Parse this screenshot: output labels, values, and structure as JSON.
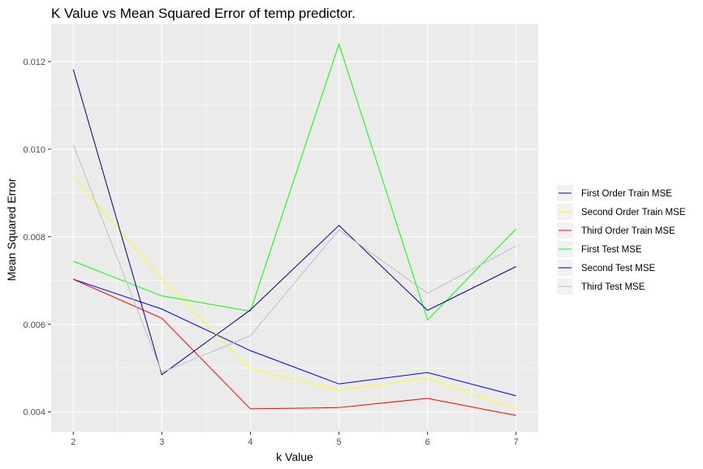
{
  "chart_data": {
    "type": "line",
    "title": "K Value vs Mean Squared Error of temp predictor.",
    "xlabel": "k Value",
    "ylabel": "Mean Squared Error",
    "x": [
      2,
      3,
      4,
      5,
      6,
      7
    ],
    "xlim": [
      1.75,
      7.25
    ],
    "ylim": [
      0.00355,
      0.01285
    ],
    "xticks": [
      "2",
      "3",
      "4",
      "5",
      "6",
      "7"
    ],
    "yticks": [
      0.004,
      0.006,
      0.008,
      0.01,
      0.012
    ],
    "ytick_labels": [
      "0.004",
      "0.006",
      "0.008",
      "0.010",
      "0.012"
    ],
    "grid": true,
    "legend_position": "right",
    "series": [
      {
        "name": "First Order Train MSE",
        "color": "#0000ff",
        "values": [
          0.00703,
          0.00635,
          0.0054,
          0.00464,
          0.0049,
          0.00437
        ]
      },
      {
        "name": "Second Order Train MSE",
        "color": "#ffff00",
        "values": [
          0.00938,
          0.00703,
          0.00498,
          0.0045,
          0.00477,
          0.00407
        ]
      },
      {
        "name": "Third Order Train MSE",
        "color": "#ff0000",
        "values": [
          0.00703,
          0.00614,
          0.00407,
          0.0041,
          0.00431,
          0.00392
        ]
      },
      {
        "name": "First Test MSE",
        "color": "#00ff00",
        "values": [
          0.00744,
          0.00665,
          0.0063,
          0.0124,
          0.0061,
          0.00818
        ]
      },
      {
        "name": "Second Test MSE",
        "color": "#00008b",
        "values": [
          0.01182,
          0.00485,
          0.00633,
          0.00826,
          0.00632,
          0.00732
        ]
      },
      {
        "name": "Third Test MSE",
        "color": "#bebebe",
        "values": [
          0.0101,
          0.0049,
          0.00574,
          0.00816,
          0.00671,
          0.00779
        ]
      }
    ]
  }
}
